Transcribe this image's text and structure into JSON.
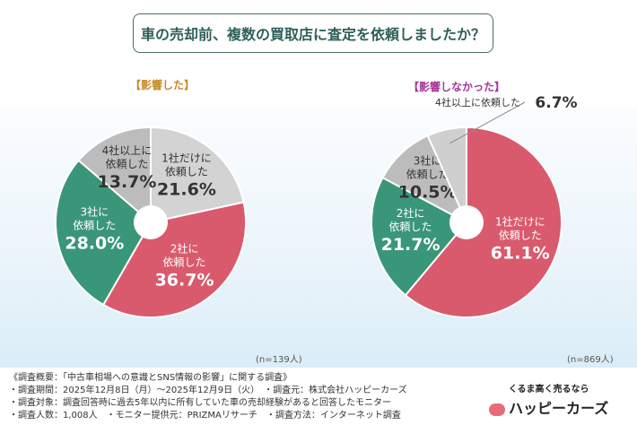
{
  "title": "車の売却前、複数の買取店に査定を依頼しましたか？",
  "colors": {
    "pink": "#d95a6c",
    "green": "#3a9679",
    "gray_light": "#d3d3d3",
    "gray_dark": "#bcbcbc",
    "title_text": "#2f5f5a"
  },
  "chart_data": [
    {
      "type": "pie",
      "title": "【影響した】",
      "note": "(n=139人)",
      "categories": [
        "1社だけに依頼した",
        "2社に依頼した",
        "3社に依頼した",
        "4社以上に依頼した"
      ],
      "values": [
        21.6,
        36.7,
        28.0,
        13.7
      ],
      "labels": [
        "21.6%",
        "36.7%",
        "28.0%",
        "13.7%"
      ],
      "colors": [
        "#d3d3d3",
        "#d95a6c",
        "#3a9679",
        "#bcbcbc"
      ]
    },
    {
      "type": "pie",
      "title": "【影響しなかった】",
      "note": "(n=869人)",
      "categories": [
        "1社だけに依頼した",
        "2社に依頼した",
        "3社に依頼した",
        "4社以上に依頼した"
      ],
      "values": [
        61.1,
        21.7,
        10.5,
        6.7
      ],
      "labels": [
        "61.1%",
        "21.7%",
        "10.5%",
        "6.7%"
      ],
      "colors": [
        "#d95a6c",
        "#3a9679",
        "#bcbcbc",
        "#cfcfcf"
      ]
    }
  ],
  "footer": {
    "lines": [
      "《調査概要：「中古車相場への意識とSNS情報の影響」に関する調査》",
      "・調査期間：2025年12月8日（月）～2025年12月9日（火）　・調査元：株式会社ハッピーカーズ",
      "・調査対象：調査回答時に過去5年以内に所有していた車の売却経験があると回答したモニター",
      "・調査人数：1,008人　・モニター提供元：PRIZMAリサーチ　・調査方法：インターネット調査"
    ]
  },
  "logo": {
    "tagline": "くるま高く売るなら",
    "brand": "ハッピーカーズ"
  }
}
